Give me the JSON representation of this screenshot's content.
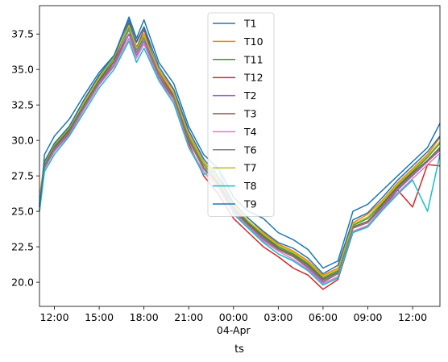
{
  "chart_data": {
    "type": "line",
    "xlabel": "ts",
    "ylabel": "",
    "ylim": [
      18.3,
      39.5
    ],
    "grid": false,
    "legend_position": "upper-center",
    "x_start": "2023-04-03 11:00",
    "x_end": "2023-04-04 13:50",
    "x_ticks": [
      {
        "t": "2023-04-03 12:00",
        "label": "12:00",
        "sub": ""
      },
      {
        "t": "2023-04-03 15:00",
        "label": "15:00",
        "sub": ""
      },
      {
        "t": "2023-04-03 18:00",
        "label": "18:00",
        "sub": ""
      },
      {
        "t": "2023-04-03 21:00",
        "label": "21:00",
        "sub": ""
      },
      {
        "t": "2023-04-04 00:00",
        "label": "00:00",
        "sub": "04-Apr"
      },
      {
        "t": "2023-04-04 03:00",
        "label": "03:00",
        "sub": ""
      },
      {
        "t": "2023-04-04 06:00",
        "label": "06:00",
        "sub": ""
      },
      {
        "t": "2023-04-04 09:00",
        "label": "09:00",
        "sub": ""
      },
      {
        "t": "2023-04-04 12:00",
        "label": "12:00",
        "sub": ""
      }
    ],
    "y_ticks": [
      "20.0",
      "22.5",
      "25.0",
      "27.5",
      "30.0",
      "32.5",
      "35.0",
      "37.5"
    ],
    "series": [
      {
        "name": "T1",
        "color": "#1f77b4",
        "x": [
          "2023-04-03 11:00",
          "2023-04-03 11:20",
          "2023-04-03 12:00",
          "2023-04-03 13:00",
          "2023-04-03 14:00",
          "2023-04-03 15:00",
          "2023-04-03 16:00",
          "2023-04-03 17:00",
          "2023-04-03 17:30",
          "2023-04-03 18:00",
          "2023-04-03 19:00",
          "2023-04-03 20:00",
          "2023-04-03 21:00",
          "2023-04-03 22:00",
          "2023-04-03 23:00",
          "2023-04-04 00:00",
          "2023-04-04 01:00",
          "2023-04-04 02:00",
          "2023-04-04 03:00",
          "2023-04-04 04:00",
          "2023-04-04 05:00",
          "2023-04-04 06:00",
          "2023-04-04 07:00",
          "2023-04-04 08:00",
          "2023-04-04 09:00",
          "2023-04-04 10:00",
          "2023-04-04 11:00",
          "2023-04-04 12:00",
          "2023-04-04 13:00",
          "2023-04-04 13:50"
        ],
        "values": [
          25.0,
          29.0,
          30.3,
          31.5,
          33.2,
          34.8,
          36.0,
          38.7,
          37.2,
          38.5,
          35.5,
          34.0,
          31.0,
          29.0,
          28.0,
          26.0,
          25.0,
          24.5,
          23.5,
          23.0,
          22.3,
          21.0,
          21.5,
          25.0,
          25.5,
          26.5,
          27.5,
          28.5,
          29.5,
          31.2
        ]
      },
      {
        "name": "T10",
        "color": "#ff7f0e",
        "x": [
          "2023-04-03 11:00",
          "2023-04-03 11:20",
          "2023-04-03 12:00",
          "2023-04-03 13:00",
          "2023-04-03 14:00",
          "2023-04-03 15:00",
          "2023-04-03 16:00",
          "2023-04-03 17:00",
          "2023-04-03 17:30",
          "2023-04-03 18:00",
          "2023-04-03 19:00",
          "2023-04-03 20:00",
          "2023-04-03 21:00",
          "2023-04-03 22:00",
          "2023-04-03 23:00",
          "2023-04-04 00:00",
          "2023-04-04 01:00",
          "2023-04-04 02:00",
          "2023-04-04 03:00",
          "2023-04-04 04:00",
          "2023-04-04 05:00",
          "2023-04-04 06:00",
          "2023-04-04 07:00",
          "2023-04-04 08:00",
          "2023-04-04 09:00",
          "2023-04-04 10:00",
          "2023-04-04 11:00",
          "2023-04-04 12:00",
          "2023-04-04 13:00",
          "2023-04-04 13:50"
        ],
        "values": [
          26.0,
          28.5,
          29.8,
          31.0,
          32.8,
          34.5,
          35.8,
          38.2,
          36.6,
          37.5,
          35.0,
          33.5,
          30.5,
          28.5,
          27.2,
          25.5,
          24.5,
          23.5,
          22.7,
          22.2,
          21.5,
          20.5,
          21.0,
          24.2,
          24.8,
          25.8,
          27.0,
          28.0,
          29.0,
          30.2
        ]
      },
      {
        "name": "T11",
        "color": "#2ca02c",
        "x": [
          "2023-04-03 11:00",
          "2023-04-03 11:20",
          "2023-04-03 12:00",
          "2023-04-03 13:00",
          "2023-04-03 14:00",
          "2023-04-03 15:00",
          "2023-04-03 16:00",
          "2023-04-03 17:00",
          "2023-04-03 17:30",
          "2023-04-03 18:00",
          "2023-04-03 19:00",
          "2023-04-03 20:00",
          "2023-04-03 21:00",
          "2023-04-03 22:00",
          "2023-04-03 23:00",
          "2023-04-04 00:00",
          "2023-04-04 01:00",
          "2023-04-04 02:00",
          "2023-04-04 03:00",
          "2023-04-04 04:00",
          "2023-04-04 05:00",
          "2023-04-04 06:00",
          "2023-04-04 07:00",
          "2023-04-04 08:00",
          "2023-04-04 09:00",
          "2023-04-04 10:00",
          "2023-04-04 11:00",
          "2023-04-04 12:00",
          "2023-04-04 13:00",
          "2023-04-04 13:50"
        ],
        "values": [
          25.5,
          28.3,
          29.6,
          30.8,
          32.6,
          34.3,
          35.8,
          38.0,
          36.4,
          37.3,
          34.8,
          33.2,
          30.3,
          28.3,
          27.0,
          25.3,
          24.2,
          23.3,
          22.5,
          22.0,
          21.3,
          20.3,
          20.8,
          24.0,
          24.5,
          25.6,
          26.8,
          27.8,
          28.8,
          29.8
        ]
      },
      {
        "name": "T12",
        "color": "#d62728",
        "x": [
          "2023-04-03 11:00",
          "2023-04-03 11:20",
          "2023-04-03 12:00",
          "2023-04-03 13:00",
          "2023-04-03 14:00",
          "2023-04-03 15:00",
          "2023-04-03 16:00",
          "2023-04-03 17:00",
          "2023-04-03 17:30",
          "2023-04-03 18:00",
          "2023-04-03 19:00",
          "2023-04-03 20:00",
          "2023-04-03 21:00",
          "2023-04-03 22:00",
          "2023-04-03 23:00",
          "2023-04-04 00:00",
          "2023-04-04 01:00",
          "2023-04-04 02:00",
          "2023-04-04 03:00",
          "2023-04-04 04:00",
          "2023-04-04 05:00",
          "2023-04-04 06:00",
          "2023-04-04 07:00",
          "2023-04-04 08:00",
          "2023-04-04 09:00",
          "2023-04-04 10:00",
          "2023-04-04 11:00",
          "2023-04-04 12:00",
          "2023-04-04 13:00",
          "2023-04-04 13:50"
        ],
        "values": [
          25.0,
          28.0,
          29.3,
          30.5,
          32.3,
          34.0,
          35.5,
          37.5,
          37.0,
          38.0,
          34.5,
          32.8,
          29.8,
          27.5,
          26.2,
          24.5,
          23.5,
          22.5,
          21.8,
          21.0,
          20.5,
          19.5,
          20.2,
          23.5,
          24.0,
          25.2,
          26.5,
          25.3,
          28.3,
          28.2
        ]
      },
      {
        "name": "T2",
        "color": "#9467bd",
        "x": [
          "2023-04-03 11:00",
          "2023-04-03 11:20",
          "2023-04-03 12:00",
          "2023-04-03 13:00",
          "2023-04-03 14:00",
          "2023-04-03 15:00",
          "2023-04-03 16:00",
          "2023-04-03 17:00",
          "2023-04-03 17:30",
          "2023-04-03 18:00",
          "2023-04-03 19:00",
          "2023-04-03 20:00",
          "2023-04-03 21:00",
          "2023-04-03 22:00",
          "2023-04-03 23:00",
          "2023-04-04 00:00",
          "2023-04-04 01:00",
          "2023-04-04 02:00",
          "2023-04-04 03:00",
          "2023-04-04 04:00",
          "2023-04-04 05:00",
          "2023-04-04 06:00",
          "2023-04-04 07:00",
          "2023-04-04 08:00",
          "2023-04-04 09:00",
          "2023-04-04 10:00",
          "2023-04-04 11:00",
          "2023-04-04 12:00",
          "2023-04-04 13:00",
          "2023-04-04 13:50"
        ],
        "values": [
          25.5,
          28.0,
          29.3,
          30.6,
          32.3,
          34.0,
          35.3,
          37.5,
          36.0,
          37.0,
          34.5,
          33.0,
          30.0,
          28.0,
          26.8,
          25.0,
          24.0,
          23.0,
          22.3,
          21.8,
          21.0,
          20.0,
          20.6,
          23.8,
          24.2,
          25.3,
          26.5,
          27.5,
          28.5,
          29.3
        ]
      },
      {
        "name": "T3",
        "color": "#8c564b",
        "x": [
          "2023-04-03 11:00",
          "2023-04-03 11:20",
          "2023-04-03 12:00",
          "2023-04-03 13:00",
          "2023-04-03 14:00",
          "2023-04-03 15:00",
          "2023-04-03 16:00",
          "2023-04-03 17:00",
          "2023-04-03 17:30",
          "2023-04-03 18:00",
          "2023-04-03 19:00",
          "2023-04-03 20:00",
          "2023-04-03 21:00",
          "2023-04-03 22:00",
          "2023-04-03 23:00",
          "2023-04-04 00:00",
          "2023-04-04 01:00",
          "2023-04-04 02:00",
          "2023-04-04 03:00",
          "2023-04-04 04:00",
          "2023-04-04 05:00",
          "2023-04-04 06:00",
          "2023-04-04 07:00",
          "2023-04-04 08:00",
          "2023-04-04 09:00",
          "2023-04-04 10:00",
          "2023-04-04 11:00",
          "2023-04-04 12:00",
          "2023-04-04 13:00",
          "2023-04-04 13:50"
        ],
        "values": [
          25.3,
          28.2,
          29.5,
          30.7,
          32.5,
          34.2,
          35.6,
          38.3,
          36.5,
          37.8,
          34.8,
          33.1,
          30.1,
          28.1,
          26.9,
          25.2,
          24.1,
          23.2,
          22.4,
          21.9,
          21.2,
          20.2,
          20.7,
          23.9,
          24.3,
          25.5,
          26.7,
          27.7,
          28.6,
          29.5
        ]
      },
      {
        "name": "T4",
        "color": "#e377c2",
        "x": [
          "2023-04-03 11:00",
          "2023-04-03 11:20",
          "2023-04-03 12:00",
          "2023-04-03 13:00",
          "2023-04-03 14:00",
          "2023-04-03 15:00",
          "2023-04-03 16:00",
          "2023-04-03 17:00",
          "2023-04-03 17:30",
          "2023-04-03 18:00",
          "2023-04-03 19:00",
          "2023-04-03 20:00",
          "2023-04-03 21:00",
          "2023-04-03 22:00",
          "2023-04-03 23:00",
          "2023-04-04 00:00",
          "2023-04-04 01:00",
          "2023-04-04 02:00",
          "2023-04-04 03:00",
          "2023-04-04 04:00",
          "2023-04-04 05:00",
          "2023-04-04 06:00",
          "2023-04-04 07:00",
          "2023-04-04 08:00",
          "2023-04-04 09:00",
          "2023-04-04 10:00",
          "2023-04-04 11:00",
          "2023-04-04 12:00",
          "2023-04-04 13:00",
          "2023-04-04 13:50"
        ],
        "values": [
          25.2,
          28.0,
          29.2,
          30.4,
          32.2,
          33.9,
          35.2,
          37.2,
          35.8,
          36.8,
          34.3,
          32.8,
          29.6,
          27.8,
          26.6,
          24.9,
          23.9,
          22.9,
          22.2,
          21.6,
          20.9,
          19.9,
          20.4,
          23.6,
          24.0,
          25.2,
          26.3,
          27.3,
          28.3,
          29.1
        ]
      },
      {
        "name": "T6",
        "color": "#7f7f7f",
        "x": [
          "2023-04-03 11:00",
          "2023-04-03 11:20",
          "2023-04-03 12:00",
          "2023-04-03 13:00",
          "2023-04-03 14:00",
          "2023-04-03 15:00",
          "2023-04-03 16:00",
          "2023-04-03 17:00",
          "2023-04-03 17:30",
          "2023-04-03 18:00",
          "2023-04-03 19:00",
          "2023-04-03 20:00",
          "2023-04-03 21:00",
          "2023-04-03 22:00",
          "2023-04-03 23:00",
          "2023-04-04 00:00",
          "2023-04-04 01:00",
          "2023-04-04 02:00",
          "2023-04-04 03:00",
          "2023-04-04 04:00",
          "2023-04-04 05:00",
          "2023-04-04 06:00",
          "2023-04-04 07:00",
          "2023-04-04 08:00",
          "2023-04-04 09:00",
          "2023-04-04 10:00",
          "2023-04-04 11:00",
          "2023-04-04 12:00",
          "2023-04-04 13:00",
          "2023-04-04 13:50"
        ],
        "values": [
          25.4,
          28.1,
          29.4,
          30.6,
          32.4,
          34.1,
          35.5,
          37.8,
          36.2,
          37.2,
          34.6,
          33.0,
          30.0,
          28.0,
          26.8,
          25.1,
          24.0,
          23.1,
          22.3,
          21.8,
          21.1,
          20.1,
          20.6,
          23.8,
          24.2,
          25.4,
          26.6,
          27.6,
          28.5,
          29.4
        ]
      },
      {
        "name": "T7",
        "color": "#bcbd22",
        "x": [
          "2023-04-03 11:00",
          "2023-04-03 11:20",
          "2023-04-03 12:00",
          "2023-04-03 13:00",
          "2023-04-03 14:00",
          "2023-04-03 15:00",
          "2023-04-03 16:00",
          "2023-04-03 17:00",
          "2023-04-03 17:30",
          "2023-04-03 18:00",
          "2023-04-03 19:00",
          "2023-04-03 20:00",
          "2023-04-03 21:00",
          "2023-04-03 22:00",
          "2023-04-03 23:00",
          "2023-04-04 00:00",
          "2023-04-04 01:00",
          "2023-04-04 02:00",
          "2023-04-04 03:00",
          "2023-04-04 04:00",
          "2023-04-04 05:00",
          "2023-04-04 06:00",
          "2023-04-04 07:00",
          "2023-04-04 08:00",
          "2023-04-04 09:00",
          "2023-04-04 10:00",
          "2023-04-04 11:00",
          "2023-04-04 12:00",
          "2023-04-04 13:00",
          "2023-04-04 13:50"
        ],
        "values": [
          25.6,
          28.4,
          29.7,
          30.9,
          32.7,
          34.4,
          35.9,
          38.1,
          36.5,
          37.4,
          34.9,
          33.3,
          30.4,
          28.4,
          27.1,
          25.4,
          24.3,
          23.4,
          22.6,
          22.1,
          21.4,
          20.4,
          20.9,
          24.1,
          24.6,
          25.7,
          26.9,
          27.9,
          28.9,
          29.9
        ]
      },
      {
        "name": "T8",
        "color": "#17becf",
        "x": [
          "2023-04-03 11:00",
          "2023-04-03 11:20",
          "2023-04-03 12:00",
          "2023-04-03 13:00",
          "2023-04-03 14:00",
          "2023-04-03 15:00",
          "2023-04-03 16:00",
          "2023-04-03 17:00",
          "2023-04-03 17:30",
          "2023-04-03 18:00",
          "2023-04-03 19:00",
          "2023-04-03 20:00",
          "2023-04-03 21:00",
          "2023-04-03 22:00",
          "2023-04-03 23:00",
          "2023-04-04 00:00",
          "2023-04-04 01:00",
          "2023-04-04 02:00",
          "2023-04-04 03:00",
          "2023-04-04 04:00",
          "2023-04-04 05:00",
          "2023-04-04 06:00",
          "2023-04-04 07:00",
          "2023-04-04 08:00",
          "2023-04-04 09:00",
          "2023-04-04 10:00",
          "2023-04-04 11:00",
          "2023-04-04 12:00",
          "2023-04-04 13:00",
          "2023-04-04 13:50"
        ],
        "values": [
          25.0,
          27.8,
          29.0,
          30.3,
          32.0,
          33.7,
          35.0,
          37.0,
          35.5,
          36.5,
          34.2,
          32.6,
          29.5,
          27.6,
          28.0,
          24.8,
          23.8,
          22.8,
          22.0,
          21.5,
          20.8,
          19.8,
          20.3,
          23.5,
          23.9,
          25.1,
          26.2,
          27.2,
          25.0,
          29.0
        ]
      },
      {
        "name": "T9",
        "color": "#1f77b4",
        "x": [
          "2023-04-03 11:00",
          "2023-04-03 11:20",
          "2023-04-03 12:00",
          "2023-04-03 13:00",
          "2023-04-03 14:00",
          "2023-04-03 15:00",
          "2023-04-03 16:00",
          "2023-04-03 17:00",
          "2023-04-03 17:30",
          "2023-04-03 18:00",
          "2023-04-03 19:00",
          "2023-04-03 20:00",
          "2023-04-03 21:00",
          "2023-04-03 22:00",
          "2023-04-03 23:00",
          "2023-04-04 00:00",
          "2023-04-04 01:00",
          "2023-04-04 02:00",
          "2023-04-04 03:00",
          "2023-04-04 04:00",
          "2023-04-04 05:00",
          "2023-04-04 06:00",
          "2023-04-04 07:00",
          "2023-04-04 08:00",
          "2023-04-04 09:00",
          "2023-04-04 10:00",
          "2023-04-04 11:00",
          "2023-04-04 12:00",
          "2023-04-04 13:00",
          "2023-04-04 13:50"
        ],
        "values": [
          25.3,
          28.5,
          29.8,
          31.0,
          32.9,
          34.6,
          36.0,
          38.5,
          36.9,
          38.0,
          35.2,
          33.6,
          30.7,
          28.7,
          27.4,
          25.6,
          24.5,
          23.6,
          22.8,
          22.4,
          21.7,
          20.6,
          21.2,
          24.4,
          24.9,
          26.0,
          27.2,
          28.2,
          29.2,
          30.3
        ]
      }
    ]
  }
}
